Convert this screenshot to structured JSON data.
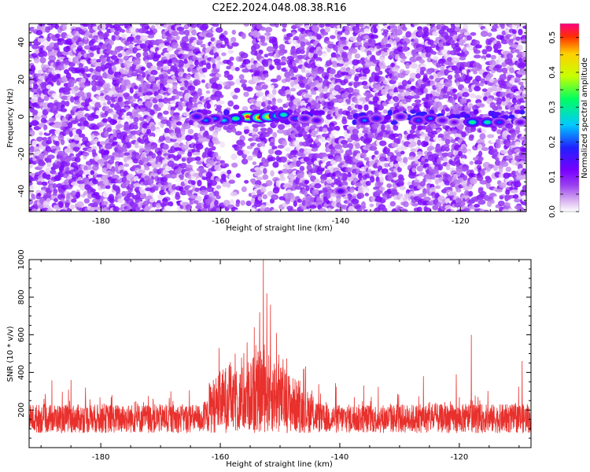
{
  "title": "C2E2.2024.048.08.38.R16",
  "chart_data": [
    {
      "type": "heatmap",
      "xlabel": "Height of straight line (km)",
      "ylabel": "Frequency (Hz)",
      "xlim": [
        -192,
        -109
      ],
      "ylim": [
        -51,
        50
      ],
      "x_ticks": [
        -180,
        -160,
        -140,
        -120
      ],
      "y_ticks": [
        -40,
        -20,
        0,
        20,
        40
      ],
      "colorbar": {
        "label": "Normalized spectral amplitude",
        "range": [
          0,
          0.54
        ],
        "ticks": [
          0.0,
          0.1,
          0.2,
          0.3,
          0.4,
          0.5
        ],
        "colors": [
          "#ffffff",
          "#d8b0f0",
          "#9a3ff0",
          "#7800ff",
          "#2020ff",
          "#00c8ff",
          "#00ff60",
          "#c8ff00",
          "#ffd000",
          "#ff3000",
          "#ff0080"
        ]
      },
      "background_noise_amplitude": [
        0,
        0.12
      ],
      "signal_band": {
        "frequency_hz": 0,
        "halfwidth_hz": 4
      },
      "clusters": [
        {
          "x": -155.5,
          "y": 0,
          "amplitude": 0.52
        },
        {
          "x": -153.5,
          "y": -0.5,
          "amplitude": 0.5
        },
        {
          "x": -152,
          "y": 0,
          "amplitude": 0.45
        },
        {
          "x": -157.5,
          "y": -1,
          "amplitude": 0.33
        },
        {
          "x": -150.5,
          "y": 0.5,
          "amplitude": 0.35
        },
        {
          "x": -149.5,
          "y": 1,
          "amplitude": 0.3
        },
        {
          "x": -159.5,
          "y": -2,
          "amplitude": 0.26
        },
        {
          "x": -161,
          "y": -1,
          "amplitude": 0.22
        },
        {
          "x": -162.5,
          "y": -2,
          "amplitude": 0.22
        },
        {
          "x": -164,
          "y": 0,
          "amplitude": 0.18
        },
        {
          "x": -147.5,
          "y": -1,
          "amplitude": 0.2
        },
        {
          "x": -146,
          "y": -1,
          "amplitude": 0.16
        },
        {
          "x": -144,
          "y": -2,
          "amplitude": 0.15
        },
        {
          "x": -136,
          "y": -2,
          "amplitude": 0.22
        },
        {
          "x": -134,
          "y": -1,
          "amplitude": 0.18
        },
        {
          "x": -130,
          "y": 0,
          "amplitude": 0.16
        },
        {
          "x": -127,
          "y": -2,
          "amplitude": 0.2
        },
        {
          "x": -125,
          "y": -1,
          "amplitude": 0.22
        },
        {
          "x": -123,
          "y": -2,
          "amplitude": 0.14
        },
        {
          "x": -121,
          "y": -3,
          "amplitude": 0.12
        },
        {
          "x": -118,
          "y": -3,
          "amplitude": 0.32
        },
        {
          "x": -115.5,
          "y": -3,
          "amplitude": 0.3
        },
        {
          "x": -113.5,
          "y": -3,
          "amplitude": 0.2
        },
        {
          "x": -110,
          "y": -3,
          "amplitude": 0.14
        },
        {
          "x": -140,
          "y": -40,
          "amplitude": 0.15
        }
      ]
    },
    {
      "type": "line",
      "xlabel": "Height of straight line (km)",
      "ylabel": "SNR (10 * v/v)",
      "xlim": [
        -192,
        -108
      ],
      "ylim": [
        0,
        1000
      ],
      "x_ticks": [
        -180,
        -160,
        -140,
        -120
      ],
      "y_ticks": [
        200,
        400,
        600,
        800,
        1000
      ],
      "color": "#e8302c",
      "baseline": {
        "mean": 140,
        "spread": 110
      },
      "peaks": [
        {
          "x": -152.8,
          "y": 1000
        },
        {
          "x": -152.2,
          "y": 820
        },
        {
          "x": -153.4,
          "y": 720
        },
        {
          "x": -151.6,
          "y": 760
        },
        {
          "x": -154.3,
          "y": 640
        },
        {
          "x": -150.6,
          "y": 610
        },
        {
          "x": -155.5,
          "y": 560
        },
        {
          "x": -149.5,
          "y": 470
        },
        {
          "x": -157.5,
          "y": 500
        },
        {
          "x": -160.2,
          "y": 530
        },
        {
          "x": -158.5,
          "y": 440
        },
        {
          "x": -146,
          "y": 420
        },
        {
          "x": -118,
          "y": 600
        },
        {
          "x": -120.5,
          "y": 390
        },
        {
          "x": -109.5,
          "y": 460
        },
        {
          "x": -126,
          "y": 380
        },
        {
          "x": -185,
          "y": 360
        },
        {
          "x": -136,
          "y": 330
        }
      ]
    }
  ]
}
